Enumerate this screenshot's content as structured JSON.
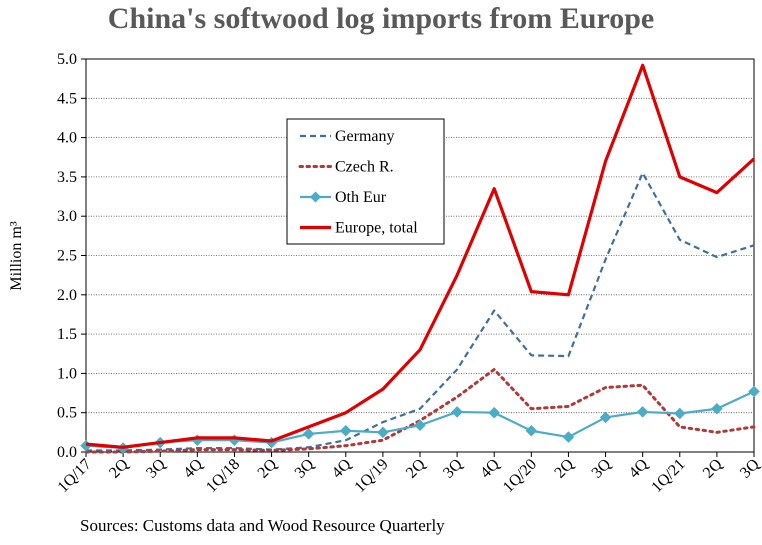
{
  "title": "China's softwood log imports from Europe",
  "source_note": "Sources: Customs data and Wood Resource Quarterly",
  "chart_data": {
    "type": "line",
    "title": "China's softwood log imports from Europe",
    "xlabel": "",
    "ylabel": "Million m³",
    "ylim": [
      0,
      5.0
    ],
    "yticks": [
      "0.0",
      "0.5",
      "1.0",
      "1.5",
      "2.0",
      "2.5",
      "3.0",
      "3.5",
      "4.0",
      "4.5",
      "5.0"
    ],
    "categories": [
      "1Q/17",
      "2Q",
      "3Q",
      "4Q",
      "1Q/18",
      "2Q",
      "3Q",
      "4Q",
      "1Q/19",
      "2Q",
      "3Q",
      "4Q",
      "1Q/20",
      "2Q",
      "3Q",
      "4Q",
      "1Q/21",
      "2Q",
      "3Q"
    ],
    "grid": "horizontal",
    "legend_position": "upper-middle",
    "series": [
      {
        "name": "Germany",
        "color": "#3e6f9e",
        "style": "dashed",
        "values": [
          0.02,
          0.02,
          0.03,
          0.05,
          0.05,
          0.03,
          0.06,
          0.15,
          0.38,
          0.55,
          1.05,
          1.8,
          1.23,
          1.22,
          2.45,
          3.55,
          2.7,
          2.48,
          2.63
        ]
      },
      {
        "name": "Czech R.",
        "color": "#b03a3a",
        "style": "dotted",
        "values": [
          0.0,
          0.0,
          0.01,
          0.03,
          0.03,
          0.02,
          0.04,
          0.08,
          0.15,
          0.4,
          0.7,
          1.05,
          0.55,
          0.58,
          0.82,
          0.85,
          0.32,
          0.25,
          0.32
        ]
      },
      {
        "name": "Oth Eur",
        "color": "#4bacc6",
        "style": "solid-diamond",
        "values": [
          0.08,
          0.05,
          0.12,
          0.15,
          0.15,
          0.12,
          0.23,
          0.27,
          0.25,
          0.34,
          0.51,
          0.5,
          0.27,
          0.19,
          0.44,
          0.51,
          0.49,
          0.55,
          0.77
        ]
      },
      {
        "name": "Europe, total",
        "color": "#e00000",
        "style": "solid-thick",
        "values": [
          0.1,
          0.06,
          0.12,
          0.18,
          0.18,
          0.14,
          0.32,
          0.5,
          0.8,
          1.3,
          2.25,
          3.35,
          2.04,
          2.0,
          3.7,
          4.92,
          3.5,
          3.3,
          3.73
        ]
      }
    ]
  }
}
